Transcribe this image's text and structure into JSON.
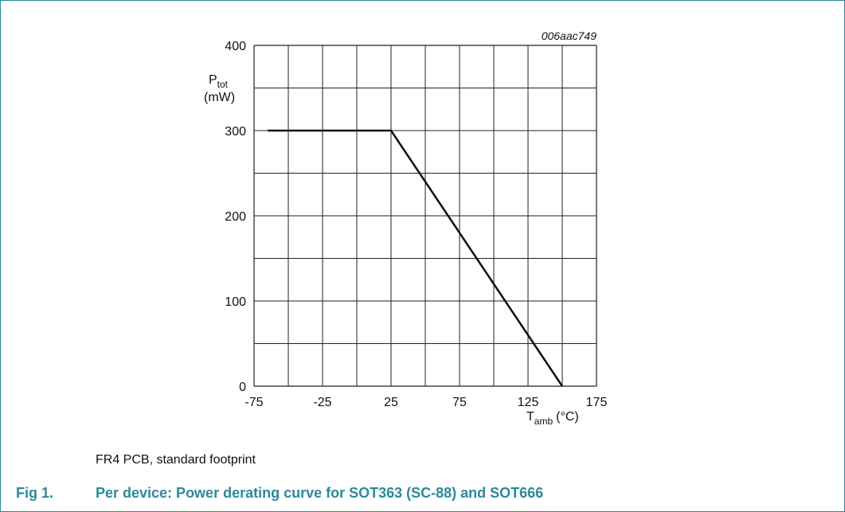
{
  "figure": {
    "code": "006aac749",
    "note": "FR4 PCB, standard footprint",
    "caption_number": "Fig 1.",
    "caption_title": "Per device: Power derating curve for SOT363 (SC-88) and SOT666"
  },
  "chart_data": {
    "type": "line",
    "title": "",
    "ylabel_main": "P",
    "ylabel_sub": "tot",
    "ylabel_unit": "(mW)",
    "xlabel_main": "T",
    "xlabel_sub": "amb",
    "xlabel_unit": "(°C)",
    "xlim": [
      -75,
      175
    ],
    "ylim": [
      0,
      400
    ],
    "x_ticks": [
      "-75",
      "-25",
      "25",
      "75",
      "125",
      "175"
    ],
    "y_ticks": [
      "0",
      "100",
      "200",
      "300",
      "400"
    ],
    "grid": true,
    "series": [
      {
        "x": [
          -65,
          25,
          150
        ],
        "y": [
          300,
          300,
          0
        ]
      }
    ],
    "colors": {
      "line": "#111111",
      "grid": "#222222",
      "accent": "#2a8a9a"
    }
  }
}
